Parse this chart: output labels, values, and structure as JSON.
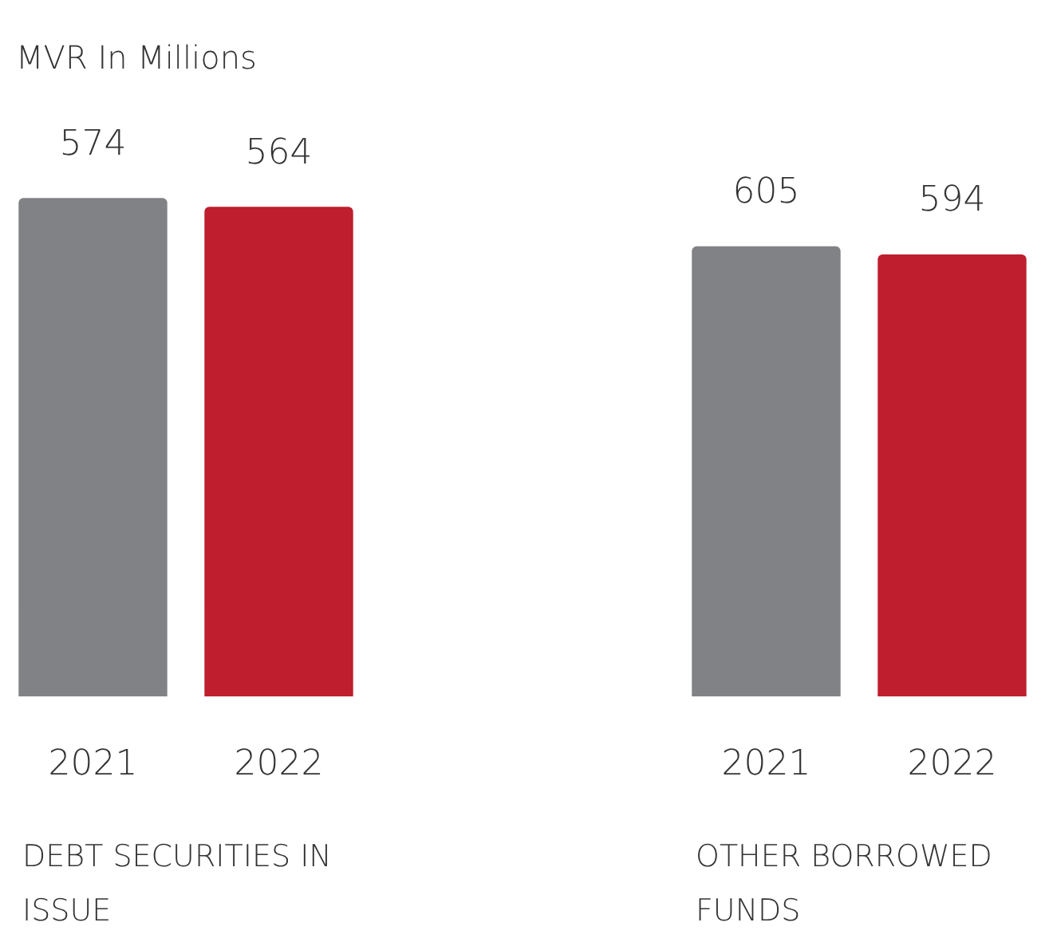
{
  "chart_data": [
    {
      "type": "bar",
      "title": "MVR In Millions",
      "xlabel": "DEBT SECURITIES IN ISSUE",
      "categories": [
        "2021",
        "2022"
      ],
      "values": [
        574,
        564
      ],
      "colors": [
        "#808285",
        "#be1e2d"
      ],
      "data_labels": true,
      "tick_labels": "x"
    },
    {
      "type": "bar",
      "xlabel": "OTHER BORROWED FUNDS",
      "categories": [
        "2021",
        "2022"
      ],
      "values": [
        605,
        594
      ],
      "colors": [
        "#808285",
        "#be1e2d"
      ],
      "data_labels": true,
      "tick_labels": "x"
    }
  ]
}
